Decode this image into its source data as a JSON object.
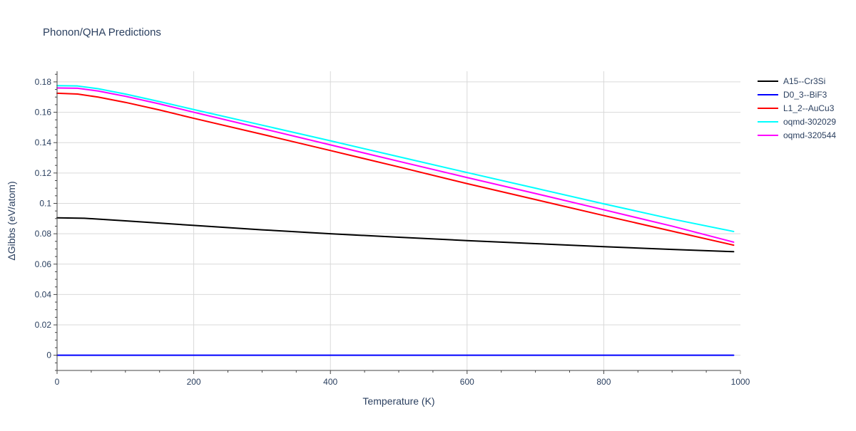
{
  "chart_data": {
    "type": "line",
    "title": "Phonon/QHA Predictions",
    "xlabel": "Temperature (K)",
    "ylabel": "ΔGibbs (eV/atom)",
    "xlim": [
      0,
      1000
    ],
    "ylim": [
      -0.01,
      0.187
    ],
    "grid": true,
    "legend_position": "top-right",
    "x_ticks": [
      0,
      200,
      400,
      600,
      800,
      1000
    ],
    "x_tick_labels": [
      "0",
      "200",
      "400",
      "600",
      "800",
      "1000"
    ],
    "y_ticks": [
      0,
      0.02,
      0.04,
      0.06,
      0.08,
      0.1,
      0.12,
      0.14,
      0.16,
      0.18
    ],
    "y_tick_labels": [
      "0",
      "0.02",
      "0.04",
      "0.06",
      "0.08",
      "0.1",
      "0.12",
      "0.14",
      "0.16",
      "0.18"
    ],
    "series": [
      {
        "name": "A15--Cr3Si",
        "color": "#000000",
        "x": [
          0,
          40,
          100,
          200,
          300,
          400,
          500,
          600,
          700,
          800,
          900,
          990
        ],
        "y": [
          0.0905,
          0.0902,
          0.0885,
          0.0855,
          0.0826,
          0.08,
          0.0777,
          0.0755,
          0.0735,
          0.0715,
          0.0697,
          0.0682
        ]
      },
      {
        "name": "D0_3--BiF3",
        "color": "#0000ff",
        "x": [
          0,
          990
        ],
        "y": [
          0.0,
          0.0
        ]
      },
      {
        "name": "L1_2--AuCu3",
        "color": "#ff0000",
        "x": [
          0,
          30,
          60,
          100,
          150,
          200,
          300,
          400,
          500,
          600,
          700,
          800,
          900,
          990
        ],
        "y": [
          0.1725,
          0.172,
          0.17,
          0.1665,
          0.1615,
          0.156,
          0.1455,
          0.1348,
          0.124,
          0.113,
          0.1025,
          0.092,
          0.0817,
          0.0725
        ]
      },
      {
        "name": "oqmd-302029",
        "color": "#00ffff",
        "x": [
          0,
          30,
          60,
          100,
          150,
          200,
          300,
          400,
          500,
          600,
          700,
          800,
          900,
          990
        ],
        "y": [
          0.1775,
          0.1773,
          0.1755,
          0.172,
          0.167,
          0.1618,
          0.1515,
          0.1412,
          0.1307,
          0.1203,
          0.11,
          0.0997,
          0.0897,
          0.0815
        ]
      },
      {
        "name": "oqmd-320544",
        "color": "#ff00ff",
        "x": [
          0,
          30,
          60,
          100,
          150,
          200,
          300,
          400,
          500,
          600,
          700,
          800,
          900,
          990
        ],
        "y": [
          0.176,
          0.1758,
          0.174,
          0.1705,
          0.1655,
          0.16,
          0.1493,
          0.1385,
          0.1277,
          0.117,
          0.1065,
          0.0958,
          0.085,
          0.0745
        ]
      }
    ]
  }
}
